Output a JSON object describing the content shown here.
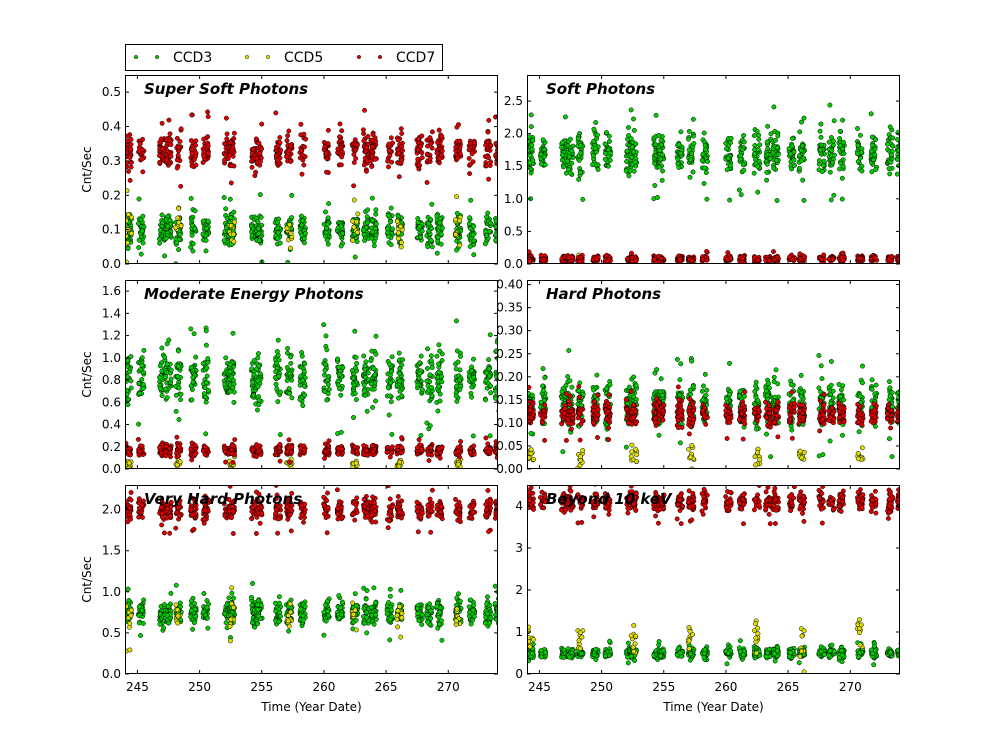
{
  "chart_data": {
    "type": "scatter",
    "legend": {
      "placement": "top-left",
      "entries": [
        {
          "name": "CCD3",
          "color": "#00cc00"
        },
        {
          "name": "CCD5",
          "color": "#dddd00"
        },
        {
          "name": "CCD7",
          "color": "#dd0000"
        }
      ]
    },
    "xlabel": "Time (Year Date)",
    "xlim": [
      244,
      274
    ],
    "xticks": [
      "245",
      "250",
      "255",
      "260",
      "265",
      "270"
    ],
    "ylabel": "Cnt/Sec",
    "observation_days": [
      244.3,
      245.3,
      247.0,
      247.5,
      248.3,
      249.5,
      250.5,
      252.2,
      252.6,
      254.4,
      254.8,
      256.3,
      257.2,
      258.3,
      260.2,
      261.3,
      262.5,
      263.4,
      264.0,
      265.3,
      266.1,
      267.7,
      268.5,
      269.3,
      270.8,
      271.9,
      273.2,
      274.0
    ],
    "panels": [
      {
        "title": "Super Soft Photons",
        "ylim": [
          0,
          0.55
        ],
        "yticks": [
          "0.0",
          "0.1",
          "0.2",
          "0.3",
          "0.4",
          "0.5"
        ],
        "series": [
          {
            "name": "CCD3",
            "level": 0.1,
            "spread": 0.035
          },
          {
            "name": "CCD5",
            "level": 0.1,
            "spread": 0.04
          },
          {
            "name": "CCD7",
            "level": 0.33,
            "spread": 0.04
          }
        ]
      },
      {
        "title": "Soft Photons",
        "ylim": [
          0,
          2.9
        ],
        "yticks": [
          "0.0",
          "0.5",
          "1.0",
          "1.5",
          "2.0",
          "2.5"
        ],
        "series": [
          {
            "name": "CCD3",
            "level": 1.7,
            "spread": 0.25
          },
          {
            "name": "CCD5",
            "level": 0.05,
            "spread": 0.03
          },
          {
            "name": "CCD7",
            "level": 0.08,
            "spread": 0.04
          }
        ]
      },
      {
        "title": "Moderate Energy Photons",
        "ylim": [
          0,
          1.7
        ],
        "yticks": [
          "0.0",
          "0.2",
          "0.4",
          "0.6",
          "0.8",
          "1.0",
          "1.2",
          "1.4",
          "1.6"
        ],
        "series": [
          {
            "name": "CCD3",
            "level": 0.82,
            "spread": 0.18
          },
          {
            "name": "CCD5",
            "level": 0.05,
            "spread": 0.03
          },
          {
            "name": "CCD7",
            "level": 0.17,
            "spread": 0.04
          }
        ]
      },
      {
        "title": "Hard Photons",
        "ylim": [
          0,
          0.41
        ],
        "yticks": [
          "0.00",
          "0.05",
          "0.10",
          "0.15",
          "0.20",
          "0.25",
          "0.30",
          "0.35",
          "0.40"
        ],
        "series": [
          {
            "name": "CCD3",
            "level": 0.14,
            "spread": 0.04
          },
          {
            "name": "CCD5",
            "level": 0.03,
            "spread": 0.015
          },
          {
            "name": "CCD7",
            "level": 0.12,
            "spread": 0.02
          }
        ]
      },
      {
        "title": "Very Hard Photons",
        "ylim": [
          0,
          2.3
        ],
        "yticks": [
          "0.0",
          "0.5",
          "1.0",
          "1.5",
          "2.0"
        ],
        "series": [
          {
            "name": "CCD3",
            "level": 0.75,
            "spread": 0.12
          },
          {
            "name": "CCD5",
            "level": 0.7,
            "spread": 0.15
          },
          {
            "name": "CCD7",
            "level": 2.0,
            "spread": 0.1
          }
        ]
      },
      {
        "title": "Beyond 10 keV",
        "ylim": [
          0,
          4.5
        ],
        "yticks": [
          "0",
          "1",
          "2",
          "3",
          "4"
        ],
        "series": [
          {
            "name": "CCD3",
            "level": 0.5,
            "spread": 0.1
          },
          {
            "name": "CCD5",
            "level": 0.9,
            "spread": 0.3
          },
          {
            "name": "CCD7",
            "level": 4.1,
            "spread": 0.18
          }
        ]
      }
    ]
  }
}
